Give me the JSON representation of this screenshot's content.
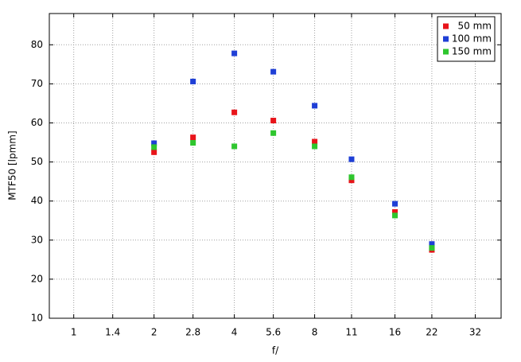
{
  "chart_data": {
    "type": "scatter",
    "xlabel": "f/",
    "ylabel": "MTF50 [lpmm]",
    "xscale": "log",
    "xlim": [
      0.81,
      40
    ],
    "ylim": [
      10,
      88
    ],
    "xticks": [
      1,
      1.4,
      2,
      2.8,
      4,
      5.6,
      8,
      11,
      16,
      22,
      32
    ],
    "yticks": [
      10,
      20,
      30,
      40,
      50,
      60,
      70,
      80
    ],
    "grid": true,
    "legend": "top-right",
    "x": [
      2,
      2.8,
      4,
      5.6,
      8,
      11,
      16,
      22
    ],
    "series": [
      {
        "name": "50 mm",
        "color": "#e8141a",
        "values": [
          52.5,
          56.3,
          62.7,
          60.6,
          55.2,
          45.3,
          37.2,
          27.5
        ]
      },
      {
        "name": "100 mm",
        "color": "#1f3fd6",
        "values": [
          54.8,
          70.6,
          77.8,
          73.1,
          64.4,
          50.7,
          39.3,
          29.0
        ]
      },
      {
        "name": "150 mm",
        "color": "#2ec62e",
        "values": [
          53.8,
          54.9,
          54.0,
          57.4,
          54.0,
          46.1,
          36.3,
          28.0
        ]
      }
    ]
  }
}
